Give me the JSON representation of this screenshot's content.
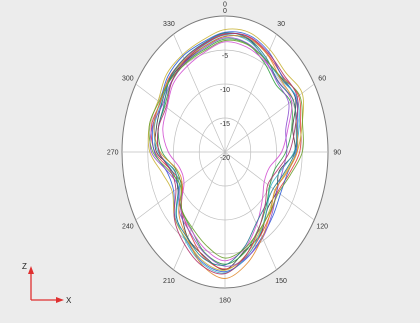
{
  "chart_data": {
    "type": "polar-line",
    "title": "",
    "angular_unit": "degrees",
    "angular_zero": "top",
    "angular_direction": "clockwise",
    "angle_tick_labels": [
      "0",
      "30",
      "60",
      "90",
      "120",
      "150",
      "180",
      "210",
      "240",
      "270",
      "300",
      "330"
    ],
    "radial_tick_labels": [
      "0",
      "-5",
      "-10",
      "-15",
      "-20"
    ],
    "radial_range": [
      -20,
      0
    ],
    "grid": true,
    "angles": [
      0,
      15,
      30,
      45,
      60,
      75,
      90,
      105,
      120,
      135,
      150,
      165,
      180,
      195,
      210,
      225,
      240,
      255,
      270,
      285,
      300,
      315,
      330,
      345
    ],
    "base_series": [
      -3,
      -3,
      -4,
      -5,
      -4.5,
      -6,
      -7,
      -8.5,
      -9,
      -8,
      -6.5,
      -4.5,
      -3,
      -4,
      -6,
      -7.5,
      -10,
      -9.5,
      -7,
      -6,
      -6,
      -5,
      -4.5,
      -4
    ],
    "series": [
      {
        "color": "#3b3b3b",
        "offsets": [
          0.0,
          0.2,
          -0.3,
          0.4,
          0.3,
          -0.4,
          0.5,
          -0.6,
          0.6,
          -0.3,
          0.4,
          -0.5,
          0.3,
          -0.2,
          0.5,
          -0.4,
          0.6,
          -0.3,
          0.3,
          -0.2,
          0.2,
          0.1,
          -0.1,
          0.0
        ]
      },
      {
        "color": "#e23b3b",
        "offsets": [
          0.4,
          0.5,
          0.6,
          0.8,
          1.0,
          1.2,
          1.5,
          1.3,
          0.8,
          0.6,
          0.5,
          0.4,
          0.2,
          0.0,
          -0.3,
          -0.6,
          -0.4,
          0.2,
          0.6,
          0.8,
          0.5,
          0.4,
          0.3,
          0.4
        ]
      },
      {
        "color": "#2e9e3f",
        "offsets": [
          -0.4,
          -0.5,
          -0.8,
          -1.0,
          -0.8,
          -0.6,
          -1.2,
          -1.5,
          -1.0,
          -0.7,
          -0.5,
          -0.3,
          -0.5,
          -0.7,
          -0.9,
          -0.6,
          -0.2,
          -0.6,
          -0.8,
          -0.6,
          -0.5,
          -0.4,
          -0.3,
          -0.4
        ]
      },
      {
        "color": "#2d5ed8",
        "offsets": [
          0.6,
          0.8,
          1.0,
          0.7,
          0.4,
          0.6,
          0.8,
          1.0,
          1.4,
          1.2,
          0.9,
          0.7,
          0.6,
          0.8,
          1.0,
          1.2,
          1.5,
          1.1,
          0.7,
          0.5,
          0.6,
          0.7,
          0.8,
          0.7
        ]
      },
      {
        "color": "#d24fd2",
        "offsets": [
          -0.8,
          -1.0,
          -0.6,
          -0.3,
          -0.6,
          -1.4,
          -2.0,
          -2.6,
          -2.2,
          -1.8,
          -1.2,
          -0.8,
          -1.0,
          -1.2,
          -0.8,
          -0.4,
          -0.8,
          -1.4,
          -2.0,
          -1.5,
          -1.0,
          -0.8,
          -0.9,
          -0.8
        ]
      },
      {
        "color": "#36b5c9",
        "offsets": [
          0.2,
          0.0,
          -0.2,
          0.2,
          0.6,
          0.9,
          0.4,
          -0.4,
          -0.8,
          -0.4,
          0.2,
          0.5,
          0.8,
          1.0,
          1.2,
          0.8,
          0.2,
          -0.2,
          0.0,
          0.2,
          0.3,
          0.2,
          0.1,
          0.2
        ]
      },
      {
        "color": "#c9b336",
        "offsets": [
          1.0,
          1.2,
          1.4,
          1.6,
          1.8,
          1.5,
          1.0,
          0.6,
          0.3,
          0.2,
          0.0,
          0.2,
          0.4,
          0.6,
          0.9,
          1.3,
          1.8,
          2.0,
          1.6,
          1.2,
          1.0,
          1.1,
          1.0,
          1.0
        ]
      },
      {
        "color": "#8a4fcf",
        "offsets": [
          -0.2,
          -0.4,
          -0.4,
          -0.6,
          -1.2,
          -1.8,
          -1.0,
          0.0,
          0.6,
          0.9,
          1.1,
          0.6,
          -0.2,
          -0.6,
          -0.4,
          0.0,
          0.4,
          0.9,
          1.3,
          0.6,
          0.0,
          -0.3,
          -0.2,
          -0.2
        ]
      },
      {
        "color": "#e08a2e",
        "offsets": [
          0.0,
          0.3,
          0.5,
          0.2,
          -0.2,
          0.4,
          1.0,
          0.8,
          0.2,
          0.5,
          1.0,
          1.4,
          1.6,
          1.2,
          0.6,
          0.2,
          -0.4,
          -0.8,
          -0.4,
          0.3,
          0.6,
          0.3,
          0.1,
          0.0
        ]
      },
      {
        "color": "#1f7a8c",
        "offsets": [
          0.5,
          0.3,
          0.0,
          -0.4,
          -0.2,
          0.3,
          0.6,
          0.4,
          -0.2,
          -0.9,
          -1.4,
          -1.0,
          -0.4,
          0.2,
          0.6,
          0.9,
          0.5,
          0.2,
          -0.2,
          -0.6,
          -0.3,
          0.2,
          0.4,
          0.5
        ]
      },
      {
        "color": "#6aa02d",
        "offsets": [
          -0.6,
          -0.6,
          -0.3,
          0.5,
          1.2,
          1.6,
          2.0,
          1.6,
          1.0,
          0.4,
          -0.2,
          -0.8,
          -1.4,
          -1.8,
          -1.2,
          -0.6,
          0.0,
          0.6,
          1.0,
          1.2,
          0.8,
          0.0,
          -0.4,
          -0.6
        ]
      },
      {
        "color": "#b0306a",
        "offsets": [
          0.3,
          0.6,
          0.8,
          1.1,
          0.7,
          0.1,
          -0.5,
          -1.0,
          -1.4,
          -1.0,
          -0.4,
          0.2,
          0.9,
          1.3,
          1.7,
          1.4,
          1.0,
          0.4,
          -0.2,
          -0.6,
          -0.8,
          -0.4,
          0.0,
          0.3
        ]
      }
    ]
  },
  "axis_indicator": {
    "z_label": "Z",
    "x_label": "X"
  },
  "colors": {
    "panel_background": "#ececec",
    "plot_background": "#ffffff",
    "grid": "#bfbfbf",
    "axis_indicator": "#e03030"
  }
}
